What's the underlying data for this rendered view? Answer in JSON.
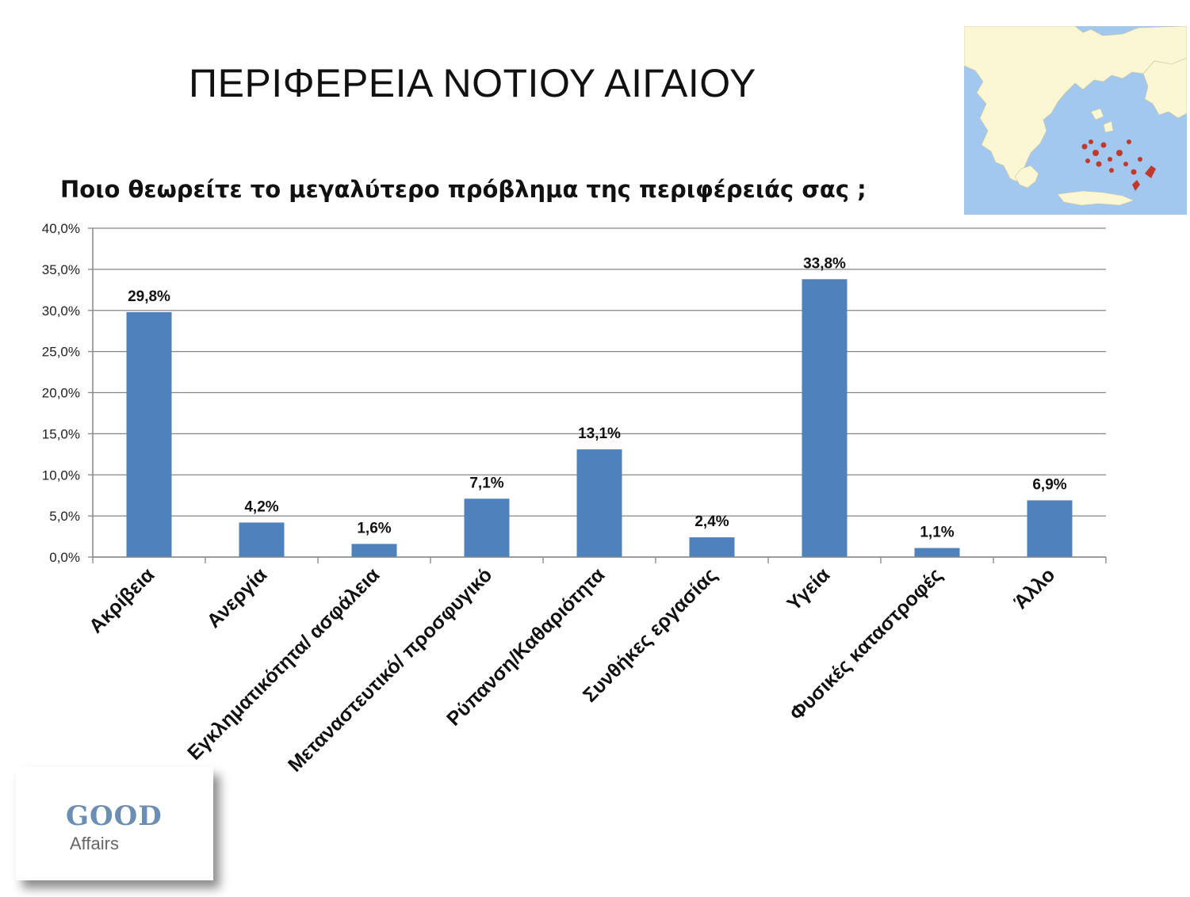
{
  "slide": {
    "title": "ΠΕΡΙΦΕΡΕΙΑ ΝΟΤΙΟΥ ΑΙΓΑΙΟΥ",
    "question": "Ποιο θεωρείτε το μεγαλύτερο πρόβλημα της περιφέρειάς σας ;"
  },
  "logo": {
    "line1": "GOOD",
    "line2": "Affairs"
  },
  "map": {
    "sea_color": "#a3c8f0",
    "land_color": "#fbf7d4",
    "highlight_color": "#c0392b"
  },
  "chart_data": {
    "type": "bar",
    "categories": [
      "Ακρίβεια",
      "Ανεργία",
      "Εγκληματικότητα/ ασφάλεια",
      "Μεταναστευτικό/ προσφυγικό",
      "Ρύπανση/Καθαριότητα",
      "Συνθήκες εργασίας",
      "Υγεία",
      "Φυσικές καταστροφές",
      "Άλλο"
    ],
    "values": [
      29.8,
      4.2,
      1.6,
      7.1,
      13.1,
      2.4,
      33.8,
      1.1,
      6.9
    ],
    "value_labels": [
      "29,8%",
      "4,2%",
      "1,6%",
      "7,1%",
      "13,1%",
      "2,4%",
      "33,8%",
      "1,1%",
      "6,9%"
    ],
    "ylim": [
      0,
      40
    ],
    "yticks": [
      "0,0%",
      "5,0%",
      "10,0%",
      "15,0%",
      "20,0%",
      "25,0%",
      "30,0%",
      "35,0%",
      "40,0%"
    ],
    "bar_color": "#4f81bd",
    "grid": true,
    "xlabel": "",
    "ylabel": ""
  }
}
